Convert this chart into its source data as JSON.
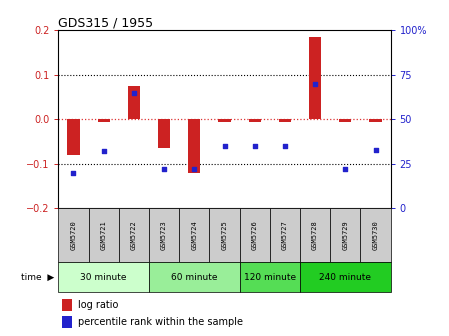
{
  "title": "GDS315 / 1955",
  "samples": [
    "GSM5720",
    "GSM5721",
    "GSM5722",
    "GSM5723",
    "GSM5724",
    "GSM5725",
    "GSM5726",
    "GSM5727",
    "GSM5728",
    "GSM5729",
    "GSM5730"
  ],
  "log_ratio": [
    -0.08,
    -0.005,
    0.075,
    -0.065,
    -0.12,
    -0.005,
    -0.005,
    -0.005,
    0.185,
    -0.005,
    -0.005
  ],
  "percentile": [
    20,
    32,
    65,
    22,
    22,
    35,
    35,
    35,
    70,
    22,
    33
  ],
  "ylim_left": [
    -0.2,
    0.2
  ],
  "ylim_right": [
    0,
    100
  ],
  "groups": [
    {
      "label": "30 minute",
      "start": 0,
      "end": 3,
      "color": "#ccffbb"
    },
    {
      "label": "60 minute",
      "start": 3,
      "end": 6,
      "color": "#aaeebb"
    },
    {
      "label": "120 minute",
      "start": 6,
      "end": 8,
      "color": "#77dd77"
    },
    {
      "label": "240 minute",
      "start": 8,
      "end": 11,
      "color": "#33cc44"
    }
  ],
  "bar_color": "#cc2222",
  "dot_color": "#2222cc",
  "hline_color": "#dd3333",
  "grid_color": "#000000",
  "bg_color": "#ffffff",
  "sample_bg": "#cccccc",
  "legend_bar_label": "log ratio",
  "legend_dot_label": "percentile rank within the sample",
  "yticks_left": [
    -0.2,
    -0.1,
    0.0,
    0.1,
    0.2
  ],
  "yticks_right": [
    0,
    25,
    50,
    75,
    100
  ]
}
